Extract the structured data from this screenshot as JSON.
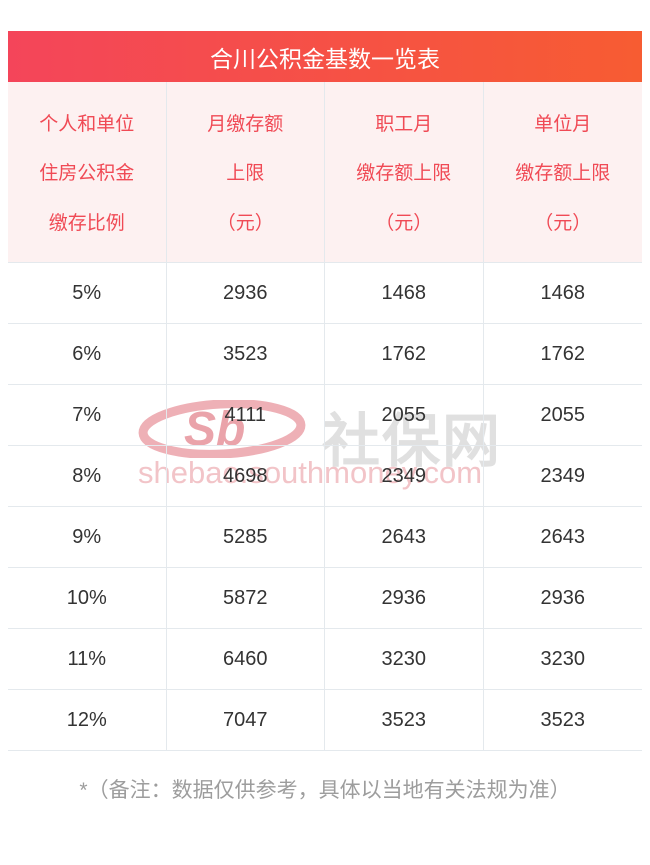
{
  "title": "合川公积金基数一览表",
  "chart_data": {
    "type": "table",
    "title": "合川公积金基数一览表",
    "columns": [
      {
        "label": "个人和单位住房公积金缴存比例",
        "lines": [
          "个人和单位",
          "住房公积金",
          "缴存比例"
        ]
      },
      {
        "label": "月缴存额上限（元）",
        "lines": [
          "月缴存额",
          "上限",
          "（元）"
        ]
      },
      {
        "label": "职工月缴存额上限（元）",
        "lines": [
          "职工月",
          "缴存额上限",
          "（元）"
        ]
      },
      {
        "label": "单位月缴存额上限（元）",
        "lines": [
          "单位月",
          "缴存额上限",
          "（元）"
        ]
      }
    ],
    "rows": [
      [
        "5%",
        "2936",
        "1468",
        "1468"
      ],
      [
        "6%",
        "3523",
        "1762",
        "1762"
      ],
      [
        "7%",
        "4111",
        "2055",
        "2055"
      ],
      [
        "8%",
        "4698",
        "2349",
        "2349"
      ],
      [
        "9%",
        "5285",
        "2643",
        "2643"
      ],
      [
        "10%",
        "5872",
        "2936",
        "2936"
      ],
      [
        "11%",
        "6460",
        "3230",
        "3230"
      ],
      [
        "12%",
        "7047",
        "3523",
        "3523"
      ]
    ]
  },
  "watermark": {
    "logo_text": "Sb",
    "site_name": "社保网",
    "site_url": "shebao.southmoney.com"
  },
  "footnote": "*（备注：数据仅供参考，具体以当地有关法规为准）",
  "colors": {
    "title_gradient_start": "#f4455a",
    "title_gradient_end": "#f75c32",
    "header_bg": "#fdf1f1",
    "header_text": "#f04a55",
    "body_text": "#333333",
    "border": "#e4e9ed",
    "footnote_text": "#9d9d9d",
    "watermark_gray": "#e0e0e0",
    "watermark_pink": "#f2c4c8",
    "watermark_logo": "#eeb0b6"
  }
}
